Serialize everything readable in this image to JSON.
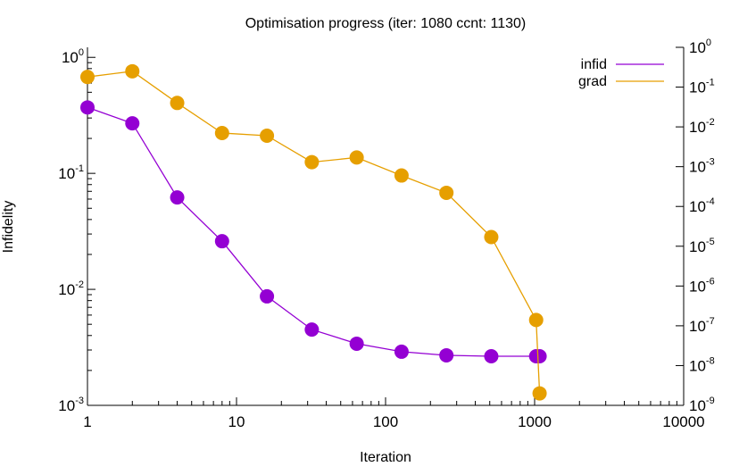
{
  "chart_data": {
    "type": "line",
    "title": "Optimisation progress (iter: 1080 ccnt: 1130)",
    "xlabel": "Iteration",
    "ylabel": "Infidelity",
    "y2label": "",
    "xscale": "log",
    "yscale": "log",
    "y2scale": "log",
    "xlim": [
      1,
      10000
    ],
    "ylim": [
      0.001,
      2
    ],
    "y2lim": [
      1e-09,
      1
    ],
    "grid": false,
    "legend_position": "top-right",
    "x_tick_labels": [
      "1",
      "10",
      "100",
      "1000",
      "10000"
    ],
    "x_tick_values": [
      1,
      10,
      100,
      1000,
      10000
    ],
    "y_tick_labels": [
      {
        "base": "10",
        "exp": "0",
        "value": 1
      },
      {
        "base": "10",
        "exp": "-1",
        "value": 0.1
      },
      {
        "base": "10",
        "exp": "-2",
        "value": 0.01
      },
      {
        "base": "10",
        "exp": "-3",
        "value": 0.001
      }
    ],
    "y2_tick_labels": [
      {
        "base": "10",
        "exp": "0",
        "value": 1
      },
      {
        "base": "10",
        "exp": "-1",
        "value": 0.1
      },
      {
        "base": "10",
        "exp": "-2",
        "value": 0.01
      },
      {
        "base": "10",
        "exp": "-3",
        "value": 0.001
      },
      {
        "base": "10",
        "exp": "-4",
        "value": 0.0001
      },
      {
        "base": "10",
        "exp": "-5",
        "value": 1e-05
      },
      {
        "base": "10",
        "exp": "-6",
        "value": 1e-06
      },
      {
        "base": "10",
        "exp": "-7",
        "value": 1e-07
      },
      {
        "base": "10",
        "exp": "-8",
        "value": 1e-08
      },
      {
        "base": "10",
        "exp": "-9",
        "value": 1e-09
      }
    ],
    "series": [
      {
        "name": "infid",
        "axis": "left",
        "color": "#9400d3",
        "x": [
          1,
          2,
          4,
          8,
          16,
          32,
          64,
          128,
          256,
          512,
          1024,
          1080
        ],
        "y": [
          0.37,
          0.27,
          0.062,
          0.026,
          0.0087,
          0.0045,
          0.0034,
          0.0029,
          0.0027,
          0.00265,
          0.00265,
          0.00265
        ]
      },
      {
        "name": "grad",
        "axis": "right",
        "color": "#e69f00",
        "x": [
          1,
          2,
          4,
          8,
          16,
          32,
          64,
          128,
          256,
          512,
          1024,
          1080
        ],
        "y": [
          0.18,
          0.25,
          0.04,
          0.007,
          0.006,
          0.0013,
          0.0017,
          0.0006,
          0.00022,
          1.7e-05,
          1.4e-07,
          2e-09
        ]
      }
    ]
  }
}
